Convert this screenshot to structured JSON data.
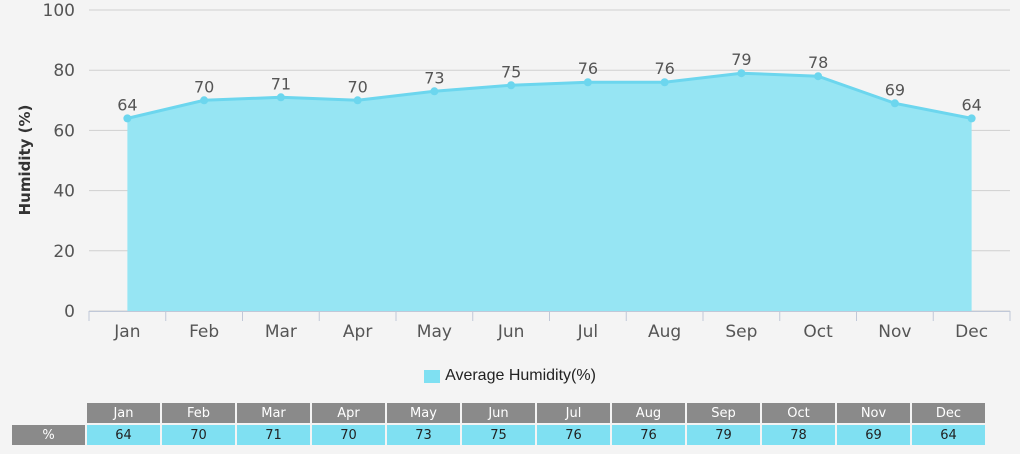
{
  "chart_data": {
    "type": "area",
    "categories": [
      "Jan",
      "Feb",
      "Mar",
      "Apr",
      "May",
      "Jun",
      "Jul",
      "Aug",
      "Sep",
      "Oct",
      "Nov",
      "Dec"
    ],
    "series": [
      {
        "name": "Average Humidity(%)",
        "values": [
          64,
          70,
          71,
          70,
          73,
          75,
          76,
          76,
          79,
          78,
          69,
          64
        ],
        "color": "#96e5f3",
        "line_color": "#6cd6ee"
      }
    ],
    "ylabel": "Humidity (%)",
    "ylim": [
      0,
      100
    ],
    "yticks": [
      0,
      20,
      40,
      60,
      80,
      100
    ],
    "grid": true,
    "legend": "bottom"
  },
  "legend": {
    "label": "Average Humidity(%)",
    "color": "#7fe0f2"
  },
  "table": {
    "row_label": "%",
    "header_color": "#8a8a8a",
    "cell_color": "#7fe0f2",
    "headers": [
      "Jan",
      "Feb",
      "Mar",
      "Apr",
      "May",
      "Jun",
      "Jul",
      "Aug",
      "Sep",
      "Oct",
      "Nov",
      "Dec"
    ],
    "values": [
      "64",
      "70",
      "71",
      "70",
      "73",
      "75",
      "76",
      "76",
      "79",
      "78",
      "69",
      "64"
    ]
  }
}
